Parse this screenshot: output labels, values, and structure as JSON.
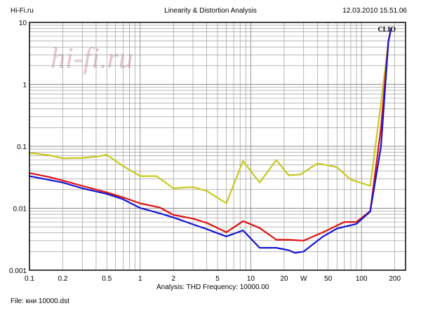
{
  "header": {
    "left": "Hi-Fi.ru",
    "center": "Linearity & Distortion Analysis",
    "right": "12.03.2010 15.51.06"
  },
  "brand": {
    "clio": "CLIO",
    "watermark": "hi-fi.ru"
  },
  "footer": {
    "analysis": "Analysis: THD   Frequency: 10000.00",
    "file": "File: кни 10000.dst"
  },
  "colors": {
    "red": "#e01010",
    "blue": "#1414d2",
    "yellow": "#c8c81e",
    "grid": "#8c8c8c",
    "watermark": "#e3c7cc"
  },
  "chart_data": {
    "type": "line",
    "xscale": "log",
    "yscale": "log",
    "xlim": [
      0.1,
      250
    ],
    "ylim": [
      0.001,
      10
    ],
    "grid": true,
    "legend": "none",
    "x_tick_labels": [
      "0.1",
      "0.2",
      "0.5",
      "1",
      "2",
      "5",
      "10",
      "20",
      "W",
      "50",
      "100",
      "200"
    ],
    "y_tick_labels": [
      "10",
      "1",
      "0.1",
      "0.01",
      "0.001"
    ],
    "series": [
      {
        "color": "#c8c81e",
        "points": [
          [
            0.1,
            0.078
          ],
          [
            0.15,
            0.072
          ],
          [
            0.2,
            0.064
          ],
          [
            0.3,
            0.065
          ],
          [
            0.4,
            0.068
          ],
          [
            0.5,
            0.073
          ],
          [
            0.7,
            0.048
          ],
          [
            1,
            0.033
          ],
          [
            1.4,
            0.033
          ],
          [
            2,
            0.021
          ],
          [
            3,
            0.022
          ],
          [
            4,
            0.019
          ],
          [
            6,
            0.012
          ],
          [
            8.5,
            0.058
          ],
          [
            12,
            0.026
          ],
          [
            17,
            0.06
          ],
          [
            22,
            0.034
          ],
          [
            28,
            0.035
          ],
          [
            40,
            0.053
          ],
          [
            60,
            0.046
          ],
          [
            80,
            0.029
          ],
          [
            120,
            0.023
          ],
          [
            150,
            0.5
          ],
          [
            175,
            5
          ],
          [
            185,
            8
          ]
        ]
      },
      {
        "color": "#e01010",
        "points": [
          [
            0.1,
            0.037
          ],
          [
            0.15,
            0.032
          ],
          [
            0.2,
            0.028
          ],
          [
            0.3,
            0.023
          ],
          [
            0.5,
            0.018
          ],
          [
            0.7,
            0.015
          ],
          [
            1,
            0.012
          ],
          [
            1.5,
            0.0103
          ],
          [
            2,
            0.0078
          ],
          [
            3,
            0.0068
          ],
          [
            4,
            0.0058
          ],
          [
            6,
            0.0041
          ],
          [
            8.5,
            0.0062
          ],
          [
            12,
            0.0048
          ],
          [
            17,
            0.0031
          ],
          [
            22,
            0.0031
          ],
          [
            30,
            0.003
          ],
          [
            45,
            0.0041
          ],
          [
            70,
            0.006
          ],
          [
            90,
            0.006
          ],
          [
            120,
            0.009
          ],
          [
            150,
            0.2
          ],
          [
            175,
            5
          ],
          [
            185,
            8
          ]
        ]
      },
      {
        "color": "#1414d2",
        "points": [
          [
            0.1,
            0.033
          ],
          [
            0.2,
            0.026
          ],
          [
            0.3,
            0.021
          ],
          [
            0.5,
            0.017
          ],
          [
            0.7,
            0.014
          ],
          [
            1,
            0.0101
          ],
          [
            1.5,
            0.0083
          ],
          [
            2,
            0.0071
          ],
          [
            3,
            0.0055
          ],
          [
            4,
            0.0046
          ],
          [
            6,
            0.0035
          ],
          [
            8.5,
            0.0044
          ],
          [
            12,
            0.0023
          ],
          [
            17,
            0.0023
          ],
          [
            22,
            0.0021
          ],
          [
            25,
            0.0019
          ],
          [
            30,
            0.002
          ],
          [
            45,
            0.0035
          ],
          [
            60,
            0.0047
          ],
          [
            90,
            0.0056
          ],
          [
            120,
            0.0089
          ],
          [
            150,
            0.1
          ],
          [
            175,
            5
          ],
          [
            185,
            8
          ]
        ]
      }
    ]
  }
}
